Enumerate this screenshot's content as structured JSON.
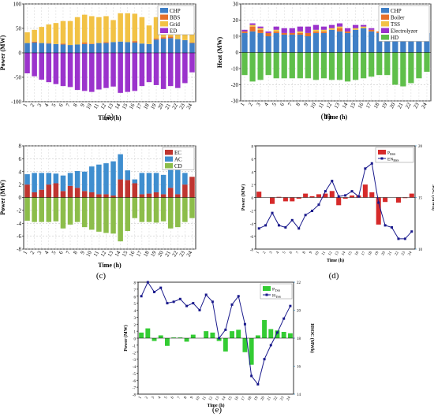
{
  "panel_labels": {
    "a": "(a)",
    "b": "(b)",
    "c": "(c)",
    "d": "(d)",
    "e": "(e)"
  },
  "colors": {
    "chp": "#3f7fc6",
    "bbs": "#e6702a",
    "grid": "#f2c245",
    "ed": "#9b33cc",
    "boiler": "#e6702a",
    "tss": "#f2c245",
    "electrolyzer": "#9b33cc",
    "hd": "#5fbf4a",
    "ec": "#bf3530",
    "ac": "#3f8ecf",
    "cd": "#8cbd4a",
    "pbss": "#d62a2a",
    "enbss": "#1a1a8c",
    "ptss": "#33cc33",
    "htss": "#1a1a8c"
  },
  "chart_data": [
    {
      "id": "a",
      "type": "bar",
      "stacked": true,
      "xlabel": "Time (h)",
      "ylabel": "Power (MW)",
      "ylim": [
        -100,
        100
      ],
      "yticks": [
        -100,
        -50,
        0,
        50,
        100
      ],
      "categories": [
        "1",
        "2",
        "3",
        "4",
        "5",
        "6",
        "7",
        "8",
        "9",
        "10",
        "11",
        "12",
        "13",
        "14",
        "15",
        "16",
        "17",
        "18",
        "19",
        "20",
        "21",
        "22",
        "23",
        "24"
      ],
      "legend_position": "top-right",
      "series": [
        {
          "name": "CHP",
          "color": "chp",
          "values": [
            20,
            21,
            20,
            19,
            18,
            17,
            16,
            17,
            18,
            18,
            20,
            20,
            22,
            23,
            22,
            21,
            19,
            18,
            27,
            29,
            30,
            28,
            26,
            20
          ]
        },
        {
          "name": "BBS",
          "color": "bbs",
          "values": [
            0,
            2,
            0,
            1,
            0,
            2,
            0,
            0,
            3,
            1,
            0,
            2,
            0,
            0,
            0,
            3,
            0,
            0,
            2,
            3,
            3,
            0,
            0,
            1
          ]
        },
        {
          "name": "Grid",
          "color": "grid",
          "values": [
            22,
            24,
            33,
            38,
            43,
            46,
            49,
            56,
            57,
            56,
            53,
            53,
            45,
            58,
            59,
            56,
            54,
            38,
            44,
            50,
            45,
            50,
            45,
            20
          ]
        },
        {
          "name": "ED",
          "color": "ed",
          "values": [
            -42,
            -48,
            -55,
            -60,
            -64,
            -68,
            -70,
            -76,
            -78,
            -80,
            -75,
            -72,
            -69,
            -82,
            -80,
            -78,
            -68,
            -60,
            -66,
            -74,
            -68,
            -72,
            -62,
            -40
          ]
        }
      ]
    },
    {
      "id": "b",
      "type": "bar",
      "stacked": true,
      "xlabel": "Time (h)",
      "ylabel": "Heat (MW)",
      "ylim": [
        -30,
        30
      ],
      "yticks": [
        -30,
        -20,
        -10,
        0,
        10,
        20,
        30
      ],
      "categories": [
        "1",
        "2",
        "3",
        "4",
        "5",
        "6",
        "7",
        "8",
        "9",
        "10",
        "11",
        "12",
        "13",
        "14",
        "15",
        "16",
        "17",
        "18",
        "19",
        "20",
        "21",
        "22",
        "23",
        "24"
      ],
      "legend_position": "top-right",
      "series": [
        {
          "name": "CHP",
          "color": "chp",
          "values": [
            12,
            13,
            12,
            10,
            12,
            11,
            11,
            11,
            10,
            12,
            12,
            14,
            13,
            12,
            14,
            15,
            13,
            12,
            12,
            12,
            12,
            12,
            12,
            12
          ]
        },
        {
          "name": "Boiler",
          "color": "boiler",
          "values": [
            1,
            3,
            2,
            2,
            1,
            1,
            1,
            1,
            2,
            1,
            1,
            0,
            2,
            1,
            0,
            0,
            1,
            1,
            0,
            0,
            0,
            0,
            0,
            0
          ]
        },
        {
          "name": "TSS",
          "color": "tss",
          "values": [
            0,
            1,
            1,
            0,
            1,
            0,
            0,
            1,
            0,
            1,
            1,
            1,
            1,
            0,
            1,
            1,
            0,
            0,
            0,
            0,
            0,
            0,
            0,
            0
          ]
        },
        {
          "name": "Electrolyzer",
          "color": "electrolyzer",
          "values": [
            1,
            1,
            1,
            1,
            2,
            3,
            3,
            3,
            4,
            3,
            2,
            2,
            2,
            2,
            2,
            1,
            1,
            0,
            0,
            0,
            0,
            0,
            0,
            0
          ]
        },
        {
          "name": "HD",
          "color": "hd",
          "values": [
            -14,
            -18,
            -17,
            -14,
            -16,
            -16,
            -16,
            -16,
            -16,
            -17,
            -16,
            -17,
            -17,
            -18,
            -17,
            -16,
            -15,
            -14,
            -14,
            -20,
            -21,
            -19,
            -16,
            -12
          ]
        }
      ]
    },
    {
      "id": "c",
      "type": "bar",
      "stacked": true,
      "xlabel": "Time (h)",
      "ylabel": "Power (MW)",
      "ylim": [
        -8,
        8
      ],
      "yticks": [
        -8,
        -6,
        -4,
        -2,
        0,
        2,
        4,
        6,
        8
      ],
      "categories": [
        "1",
        "2",
        "3",
        "4",
        "5",
        "6",
        "7",
        "8",
        "9",
        "10",
        "11",
        "12",
        "13",
        "14",
        "15",
        "16",
        "17",
        "18",
        "19",
        "20",
        "21",
        "22",
        "23",
        "24"
      ],
      "legend_position": "top-right",
      "series": [
        {
          "name": "EC",
          "color": "ec",
          "values": [
            2.0,
            0.8,
            1.2,
            2.0,
            2.2,
            1.0,
            1.8,
            1.5,
            1.0,
            0.8,
            0.5,
            0.5,
            0.3,
            2.8,
            2.7,
            2.2,
            0.5,
            0.6,
            0.8,
            0.5,
            1.5,
            0.5,
            2.0,
            3.2
          ]
        },
        {
          "name": "AC",
          "color": "ac",
          "values": [
            1.6,
            3.0,
            2.6,
            1.8,
            1.5,
            2.4,
            2.0,
            2.6,
            3.0,
            4.0,
            4.6,
            4.8,
            5.3,
            3.9,
            1.5,
            0.6,
            3.3,
            3.2,
            3.0,
            3.0,
            3.3,
            3.8,
            1.8,
            0.0
          ]
        },
        {
          "name": "CD",
          "color": "cd",
          "values": [
            -3.6,
            -3.8,
            -3.8,
            -3.8,
            -3.7,
            -4.8,
            -4.2,
            -3.8,
            -4.6,
            -5.0,
            -5.3,
            -5.5,
            -5.6,
            -6.8,
            -5.2,
            -3.2,
            -3.8,
            -3.8,
            -3.9,
            -3.7,
            -4.8,
            -4.6,
            -3.8,
            -3.2
          ]
        }
      ]
    },
    {
      "id": "d",
      "type": "bar+line",
      "xlabel": "Time (h)",
      "ylabel": "Power (MW)",
      "y2label": "SOC (MWh)",
      "ylim": [
        -8,
        8
      ],
      "yticks": [
        -8,
        -6,
        -4,
        -2,
        0,
        2,
        4,
        6,
        8
      ],
      "y2lim": [
        10,
        20
      ],
      "y2ticks": [
        10,
        15,
        20
      ],
      "categories": [
        "1",
        "2",
        "3",
        "4",
        "5",
        "6",
        "7",
        "8",
        "9",
        "10",
        "11",
        "12",
        "13",
        "14",
        "15",
        "16",
        "17",
        "18",
        "19",
        "20",
        "21",
        "22",
        "23",
        "24"
      ],
      "legend_position": "top-right",
      "series": [
        {
          "name_main": "P",
          "name_sub": "BSS",
          "type": "bar",
          "color": "pbss",
          "axis": "left",
          "values": [
            0.9,
            0,
            -1.0,
            0.1,
            -0.6,
            -0.6,
            -0.2,
            0.6,
            0.2,
            0.5,
            0.6,
            1.0,
            -1.2,
            -0.2,
            0.3,
            0.3,
            2.0,
            0.8,
            -4.2,
            -0.7,
            0,
            -0.8,
            -0.1,
            0.6
          ]
        },
        {
          "name_main": "EN",
          "name_sub": "BSS",
          "type": "line",
          "color": "enbss",
          "axis": "right",
          "values": [
            12.0,
            12.3,
            13.5,
            12.3,
            12.1,
            12.8,
            12.0,
            13.3,
            13.7,
            14.3,
            15.6,
            16.6,
            15.1,
            15.2,
            15.6,
            15.1,
            17.8,
            18.3,
            14.5,
            12.3,
            12.1,
            11.0,
            11.0,
            11.7
          ]
        }
      ]
    },
    {
      "id": "e",
      "type": "bar+line",
      "xlabel": "Time (h)",
      "ylabel": "Power (MW)",
      "y2label": "HSOC (MWh)",
      "ylim": [
        -8,
        8
      ],
      "yticks": [
        -8,
        -7,
        -6,
        -5,
        -4,
        -3,
        -2,
        -1,
        0,
        1,
        2,
        3,
        4,
        5,
        6,
        7,
        8
      ],
      "y2lim": [
        14,
        22
      ],
      "y2ticks": [
        14,
        16,
        18,
        20,
        22
      ],
      "categories": [
        "1",
        "2",
        "3",
        "4",
        "5",
        "6",
        "7",
        "8",
        "9",
        "10",
        "11",
        "12",
        "13",
        "14",
        "15",
        "16",
        "17",
        "18",
        "19",
        "20",
        "21",
        "22",
        "23",
        "24"
      ],
      "legend_position": "top-right",
      "series": [
        {
          "name_main": "P",
          "name_sub": "TSS",
          "type": "bar",
          "color": "ptss",
          "axis": "left",
          "values": [
            0.8,
            1.4,
            -0.4,
            0.4,
            -1.1,
            0.1,
            0.1,
            -0.5,
            0.5,
            0.0,
            1.0,
            0.8,
            -0.4,
            -1.9,
            1.0,
            1.2,
            -2.0,
            -3.8,
            0.4,
            2.6,
            1.3,
            1.1,
            0.9,
            0.7
          ]
        },
        {
          "name_main": "H",
          "name_sub": "TSS",
          "type": "line",
          "color": "htss",
          "axis": "right",
          "values": [
            21.0,
            22.0,
            21.3,
            21.6,
            20.5,
            20.6,
            20.8,
            20.3,
            20.5,
            20.0,
            21.1,
            20.6,
            18.0,
            18.6,
            20.4,
            21.0,
            19.0,
            15.3,
            14.7,
            16.5,
            17.5,
            18.4,
            19.4,
            20.3
          ]
        }
      ]
    }
  ]
}
